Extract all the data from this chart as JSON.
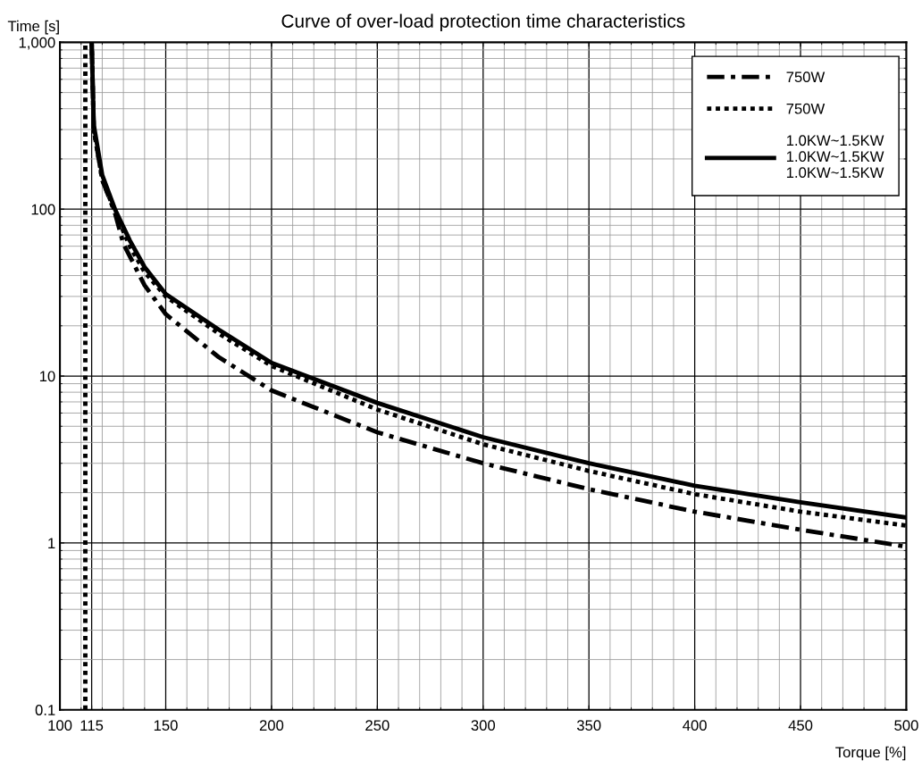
{
  "chart_data": {
    "type": "line",
    "title": "Curve of over-load protection time characteristics",
    "xlabel": "Torque [%]",
    "ylabel": "Time [s]",
    "log": "y",
    "grid": true,
    "legend": "top right",
    "xlim": [
      100,
      500
    ],
    "xticks": [
      100,
      115,
      150,
      200,
      250,
      300,
      350,
      400,
      450,
      500
    ],
    "ylim": [
      0.1,
      1000
    ],
    "yticks": [
      0.1,
      1,
      10,
      100,
      {
        "value": 1000,
        "label": "1,000"
      }
    ],
    "series": [
      {
        "name": "750W",
        "color": "#000000",
        "line_style": "dashdot",
        "x": [
          115,
          116,
          120,
          126,
          130,
          140,
          150,
          175,
          200,
          250,
          300,
          350,
          400,
          450,
          500
        ],
        "values": [
          1000,
          300,
          150,
          95,
          62,
          35,
          23.5,
          13,
          8.2,
          4.6,
          3.0,
          2.1,
          1.54,
          1.2,
          0.95
        ]
      },
      {
        "name": "750W",
        "color": "#000000",
        "line_style": "dotted",
        "x": [
          115,
          116,
          120,
          126,
          133,
          140,
          150,
          175,
          200,
          250,
          300,
          350,
          400,
          450,
          500
        ],
        "values": [
          1000,
          300,
          150,
          97,
          60,
          42,
          30,
          18,
          11.5,
          6.3,
          3.9,
          2.7,
          1.96,
          1.54,
          1.27
        ]
      },
      {
        "name": "1.0KW~1.5KW\n1.0KW~1.5KW\n1.0KW~1.5KW",
        "color": "#000000",
        "line_style": "solid",
        "x": [
          115,
          116,
          120,
          126,
          133,
          140,
          150,
          175,
          200,
          250,
          300,
          350,
          400,
          450,
          500
        ],
        "values": [
          1000,
          320,
          160,
          100,
          65,
          45,
          31,
          19,
          12,
          6.9,
          4.3,
          3.0,
          2.2,
          1.75,
          1.42
        ]
      }
    ],
    "ref_lines": [
      {
        "axis": "x",
        "value": 112,
        "color": "#000000",
        "line_style": "dotted"
      }
    ]
  }
}
